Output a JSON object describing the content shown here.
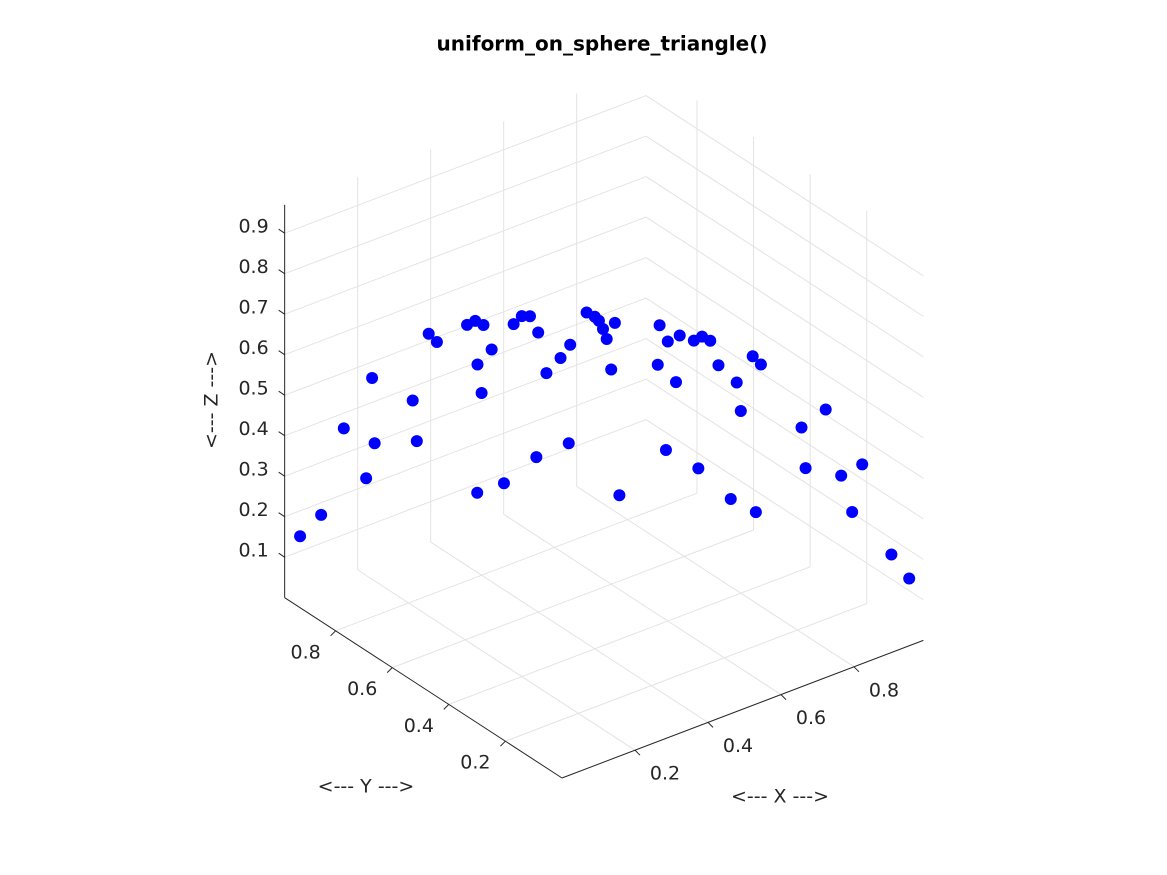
{
  "chart_data": {
    "type": "scatter3d",
    "title": "uniform_on_sphere_triangle()",
    "xlabel": "<--- X --->",
    "ylabel": "<--- Y --->",
    "zlabel": "<--- Z --->",
    "color": "#0000ff",
    "grid": true,
    "xlim": [
      0,
      0.99
    ],
    "ylim": [
      0,
      0.98
    ],
    "zlim": [
      0,
      0.97
    ],
    "xticks": [
      0.2,
      0.4,
      0.6,
      0.8
    ],
    "yticks": [
      0.2,
      0.4,
      0.6,
      0.8
    ],
    "zticks": [
      0.1,
      0.2,
      0.3,
      0.4,
      0.5,
      0.6,
      0.7,
      0.8,
      0.9
    ],
    "x": [
      0.1,
      0.2,
      0.1,
      0.3,
      0.2,
      0.4,
      0.3,
      0.5,
      0.4,
      0.6,
      0.1,
      0.5,
      0.6,
      0.4,
      0.7,
      0.2,
      0.7,
      0.5,
      0.8,
      0.1,
      0.8,
      0.4,
      0.6,
      0.9,
      0.1,
      0.9,
      0.3,
      0.7,
      0.95,
      0.2,
      0.85,
      0.5,
      0.98,
      0.1,
      0.99,
      0.05,
      0.6,
      0.75,
      0.3,
      0.15,
      0.5,
      0.25,
      0.6,
      0.35,
      0.75,
      0.65,
      0.5,
      0.8,
      0.55,
      0.92,
      0.2,
      0.45,
      0.7,
      0.35,
      0.85,
      0.25,
      0.05,
      0.4,
      0.88,
      0.45
    ],
    "y": [
      0.1,
      0.1,
      0.3,
      0.2,
      0.4,
      0.1,
      0.5,
      0.3,
      0.4,
      0.1,
      0.6,
      0.5,
      0.4,
      0.6,
      0.2,
      0.7,
      0.5,
      0.7,
      0.1,
      0.8,
      0.4,
      0.8,
      0.6,
      0.1,
      0.9,
      0.3,
      0.9,
      0.7,
      0.2,
      0.95,
      0.5,
      0.85,
      0.1,
      0.98,
      0.05,
      0.99,
      0.75,
      0.6,
      0.3,
      0.5,
      0.15,
      0.6,
      0.25,
      0.75,
      0.35,
      0.5,
      0.65,
      0.55,
      0.8,
      0.2,
      0.92,
      0.45,
      0.35,
      0.7,
      0.25,
      0.85,
      0.4,
      0.05,
      0.45,
      0.88
    ],
    "z": [
      0.99,
      0.97,
      0.95,
      0.93,
      0.89,
      0.91,
      0.81,
      0.81,
      0.82,
      0.79,
      0.79,
      0.71,
      0.69,
      0.69,
      0.69,
      0.69,
      0.51,
      0.51,
      0.59,
      0.59,
      0.45,
      0.45,
      0.53,
      0.42,
      0.42,
      0.32,
      0.32,
      0.14,
      0.24,
      0.24,
      0.17,
      0.17,
      0.17,
      0.17,
      0.13,
      0.13,
      0.28,
      0.28,
      0.91,
      0.85,
      0.85,
      0.76,
      0.76,
      0.56,
      0.56,
      0.57,
      0.57,
      0.24,
      0.24,
      0.34,
      0.34,
      0.77,
      0.62,
      0.62,
      0.46,
      0.46,
      0.92,
      0.92,
      0.15,
      0.15
    ]
  }
}
